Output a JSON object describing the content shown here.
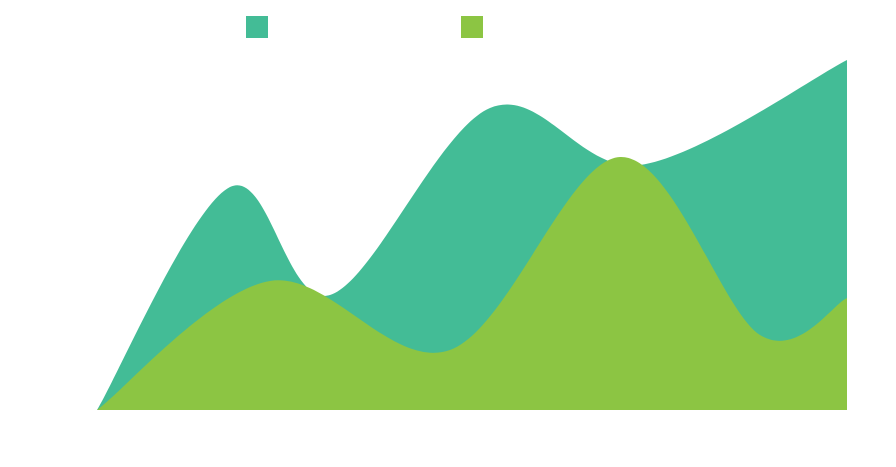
{
  "chart_data": {
    "type": "area",
    "xlim": [
      0,
      750
    ],
    "ylim": [
      0,
      350
    ],
    "series": [
      {
        "color": "#43bc96",
        "x": [
          0,
          133,
          233,
          393,
          543,
          750
        ],
        "values": [
          0,
          223,
          115,
          302,
          245,
          350
        ]
      },
      {
        "color": "#8cc543",
        "x": [
          0,
          173,
          353,
          523,
          663,
          750
        ],
        "values": [
          0,
          129,
          60,
          253,
          75,
          112
        ]
      }
    ]
  }
}
